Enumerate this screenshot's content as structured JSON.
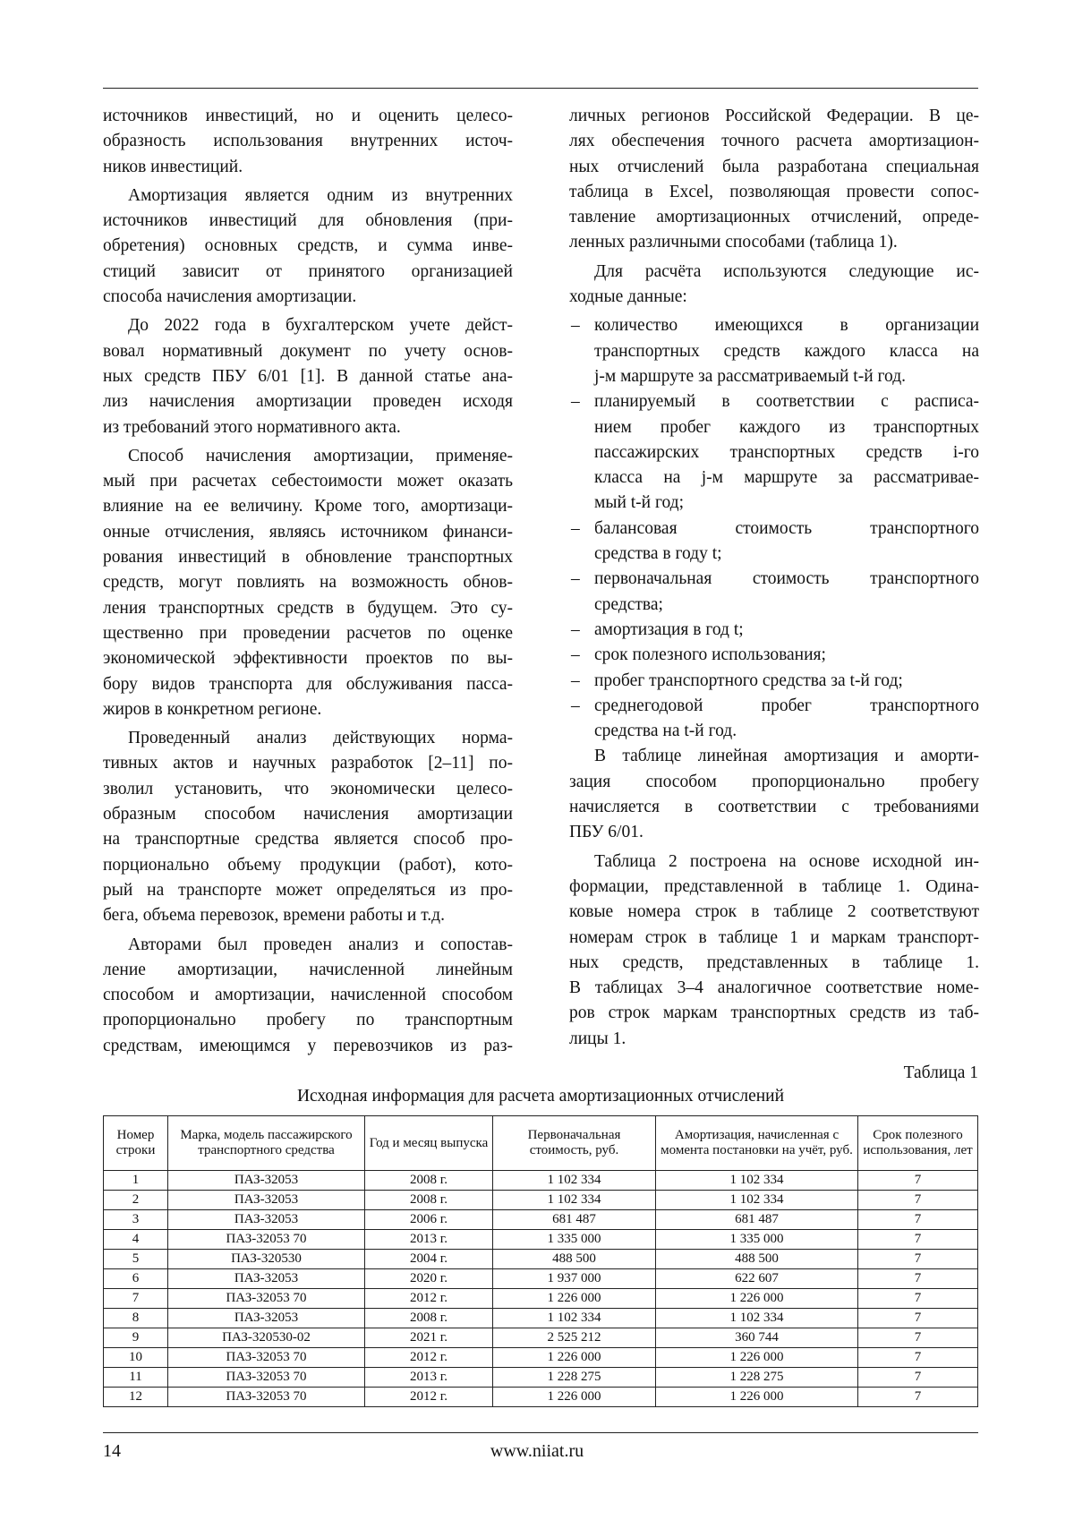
{
  "left_column": [
    {
      "indent": false,
      "continues": false,
      "lines": [
        "источников инвестиций, но и оценить целесо-",
        "образность использования внутренних источ-",
        "ников инвестиций."
      ]
    },
    {
      "indent": true,
      "continues": false,
      "lines": [
        "Амортизация является одним из внутренних",
        "источников инвестиций для обновления (при-",
        "обретения) основных средств, и сумма инве-",
        "стиций зависит от принятого организацией",
        "способа начисления амортизации."
      ]
    },
    {
      "indent": true,
      "continues": false,
      "lines": [
        "До 2022 года в бухгалтерском учете дейст-",
        "вовал нормативный документ по учету основ-",
        "ных средств ПБУ 6/01 [1]. В данной статье ана-",
        "лиз начисления амортизации проведен исходя",
        "из требований этого нормативного акта."
      ]
    },
    {
      "indent": true,
      "continues": false,
      "lines": [
        "Способ начисления амортизации, применяе-",
        "мый при расчетах себестоимости может оказать",
        "влияние на ее величину. Кроме того, амортизаци-",
        "онные отчисления, являясь источником финанси-",
        "рования инвестиций в обновление транспортных",
        "средств, могут повлиять на возможность обнов-",
        "ления транспортных средств в будущем. Это су-",
        "щественно при проведении расчетов по оценке",
        "экономической эффективности проектов по вы-",
        "бору видов транспорта для обслуживания пасса-",
        "жиров в конкретном регионе."
      ]
    },
    {
      "indent": true,
      "continues": false,
      "lines": [
        "Проведенный анализ действующих норма-",
        "тивных актов и научных разработок [2–11] по-",
        "зволил установить, что экономически целесо-",
        "образным способом начисления амортизации",
        "на транспортные средства является способ про-",
        "порционально объему продукции (работ), кото-",
        "рый на транспорте может определяться из про-",
        "бега, объема перевозок, времени работы и т.д."
      ]
    },
    {
      "indent": true,
      "continues": true,
      "lines": [
        "Авторами был проведен анализ и сопостав-",
        "ление амортизации, начисленной линейным",
        "способом и амортизации, начисленной способом",
        "пропорционально пробегу по транспортным",
        "средствам, имеющимся у перевозчиков из раз-"
      ]
    }
  ],
  "right_column": [
    {
      "indent": false,
      "continues": false,
      "lines": [
        "личных регионов Российской Федерации. В це-",
        "лях обеспечения точного расчета амортизацион-",
        "ных отчислений была разработана специальная",
        "таблица в Excel, позволяющая провести сопос-",
        "тавление амортизационных отчислений, опреде-",
        "ленных различными способами (таблица 1)."
      ]
    },
    {
      "indent": true,
      "continues": false,
      "lines": [
        "Для расчёта используются следующие ис-",
        "ходные данные:"
      ]
    },
    {
      "bullet": "–",
      "lines": [
        "количество имеющихся в организации",
        "транспортных средств каждого класса на",
        "j-м маршруте за рассматриваемый t-й год."
      ]
    },
    {
      "bullet": "–",
      "lines": [
        "планируемый в соответствии с расписа-",
        "нием пробег каждого из транспортных",
        "пассажирских транспортных средств i-го",
        "класса на j-м маршруте за рассматривае-",
        "мый t-й год;"
      ]
    },
    {
      "bullet": "–",
      "lines": [
        "балансовая стоимость транспортного",
        "средства в году t;"
      ]
    },
    {
      "bullet": "–",
      "lines": [
        "первоначальная стоимость транспортного",
        "средства;"
      ]
    },
    {
      "bullet": "–",
      "lines": [
        "амортизация в год t;"
      ]
    },
    {
      "bullet": "–",
      "lines": [
        "срок полезного использования;"
      ]
    },
    {
      "bullet": "–",
      "lines": [
        "пробег транспортного средства за t-й год;"
      ]
    },
    {
      "bullet": "–",
      "lines": [
        "среднегодовой пробег транспортного",
        "средства на t-й год."
      ]
    },
    {
      "indent": true,
      "continues": false,
      "lines": [
        "В таблице линейная амортизация и аморти-",
        "зация способом пропорционально пробегу",
        "начисляется в соответствии с требованиями",
        "ПБУ 6/01."
      ]
    },
    {
      "indent": true,
      "continues": false,
      "lines": [
        "Таблица 2 построена на основе исходной ин-",
        "формации, представленной в таблице 1. Одина-",
        "ковые номера строк в таблице 2 соответствуют",
        "номерам строк в таблице 1 и маркам транспорт-",
        "ных средств, представленных в таблице 1.",
        "В таблицах 3–4 аналогичное соответствие номе-",
        "ров строк маркам транспортных средств из таб-",
        "лицы 1."
      ]
    }
  ],
  "table1": {
    "caption": "Таблица 1",
    "title": "Исходная информация для расчета амортизационных отчислений",
    "headers": [
      "Номер строки",
      "Марка, модель пассажирского транспортного средства",
      "Год и месяц выпуска",
      "Первоначальная стоимость, руб.",
      "Амортизация, начисленная с момента постановки на учёт, руб.",
      "Срок полезного использования, лет"
    ],
    "rows": [
      [
        "1",
        "ПАЗ-32053",
        "2008 г.",
        "1 102 334",
        "1 102 334",
        "7"
      ],
      [
        "2",
        "ПАЗ-32053",
        "2008 г.",
        "1 102 334",
        "1 102 334",
        "7"
      ],
      [
        "3",
        "ПАЗ-32053",
        "2006 г.",
        "681 487",
        "681 487",
        "7"
      ],
      [
        "4",
        "ПАЗ-32053 70",
        "2013 г.",
        "1 335 000",
        "1 335 000",
        "7"
      ],
      [
        "5",
        "ПАЗ-320530",
        "2004 г.",
        "488 500",
        "488 500",
        "7"
      ],
      [
        "6",
        "ПАЗ-32053",
        "2020 г.",
        "1 937 000",
        "622 607",
        "7"
      ],
      [
        "7",
        "ПАЗ-32053 70",
        "2012 г.",
        "1 226 000",
        "1 226 000",
        "7"
      ],
      [
        "8",
        "ПАЗ-32053",
        "2008 г.",
        "1 102 334",
        "1 102 334",
        "7"
      ],
      [
        "9",
        "ПАЗ-320530-02",
        "2021 г.",
        "2 525 212",
        "360 744",
        "7"
      ],
      [
        "10",
        "ПАЗ-32053 70",
        "2012 г.",
        "1 226 000",
        "1 226 000",
        "7"
      ],
      [
        "11",
        "ПАЗ-32053 70",
        "2013 г.",
        "1 228 275",
        "1 228 275",
        "7"
      ],
      [
        "12",
        "ПАЗ-32053 70",
        "2012 г.",
        "1 226 000",
        "1 226 000",
        "7"
      ]
    ]
  },
  "footer": {
    "page_number": "14",
    "url": "www.niiat.ru"
  }
}
